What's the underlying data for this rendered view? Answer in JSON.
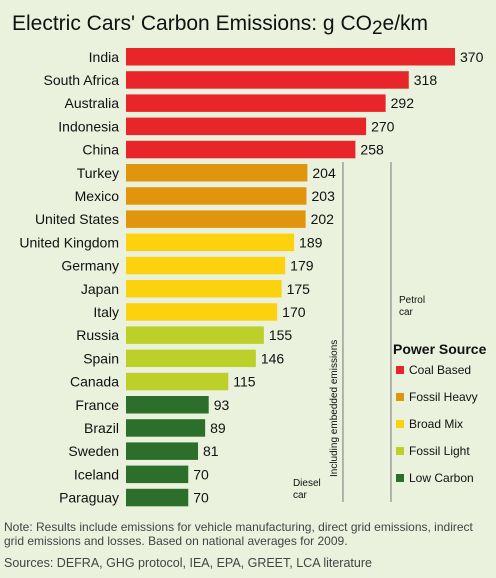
{
  "chart_data": {
    "type": "bar",
    "orientation": "horizontal",
    "title": "Electric Cars' Carbon Emissions: g CO",
    "title_sub": "2",
    "title_suffix": "e/km",
    "categories": [
      "India",
      "South Africa",
      "Australia",
      "Indonesia",
      "China",
      "Turkey",
      "Mexico",
      "United States",
      "United Kingdom",
      "Germany",
      "Japan",
      "Italy",
      "Russia",
      "Spain",
      "Canada",
      "France",
      "Brazil",
      "Sweden",
      "Iceland",
      "Paraguay"
    ],
    "values": [
      370,
      318,
      292,
      270,
      258,
      204,
      203,
      202,
      189,
      179,
      175,
      170,
      155,
      146,
      115,
      93,
      89,
      81,
      70,
      70
    ],
    "value_labels": [
      "370",
      "318",
      "292",
      "270",
      "258",
      "204",
      "203",
      "202",
      "189",
      "179",
      "175",
      "170",
      "155",
      "146",
      "115",
      "93",
      "89",
      "81",
      "70",
      "70"
    ],
    "groups": [
      "coal",
      "coal",
      "coal",
      "coal",
      "coal",
      "fossil_heavy",
      "fossil_heavy",
      "fossil_heavy",
      "broad",
      "broad",
      "broad",
      "broad",
      "fossil_light",
      "fossil_light",
      "fossil_light",
      "low",
      "low",
      "low",
      "low",
      "low"
    ],
    "colors": {
      "coal": "#e8262a",
      "fossil_heavy": "#e1940e",
      "broad": "#fcd20f",
      "fossil_light": "#bdd02a",
      "low": "#2b6f2b"
    },
    "xlim": [
      0,
      370
    ],
    "grid": false,
    "reference_lines": [
      {
        "value": 244,
        "label": [
          "Diesel",
          "car"
        ]
      },
      {
        "value": 298,
        "label": [
          "Petrol",
          "car"
        ]
      }
    ],
    "annotations": [
      {
        "text": "Including embedded emissions",
        "near": "Diesel"
      }
    ],
    "legend": {
      "title": "Power Source",
      "placement": "right",
      "items": [
        {
          "label": "Coal Based",
          "group": "coal"
        },
        {
          "label": "Fossil Heavy",
          "group": "fossil_heavy"
        },
        {
          "label": "Broad Mix",
          "group": "broad"
        },
        {
          "label": "Fossil Light",
          "group": "fossil_light"
        },
        {
          "label": "Low Carbon",
          "group": "low"
        }
      ]
    }
  },
  "footer": {
    "note": "Note:  Results include emissions for vehicle manufacturing, direct grid emissions, indirect grid emissions and losses.  Based on national averages for 2009.",
    "sources": "Sources: DEFRA, GHG protocol, IEA, EPA, GREET, LCA literature"
  }
}
